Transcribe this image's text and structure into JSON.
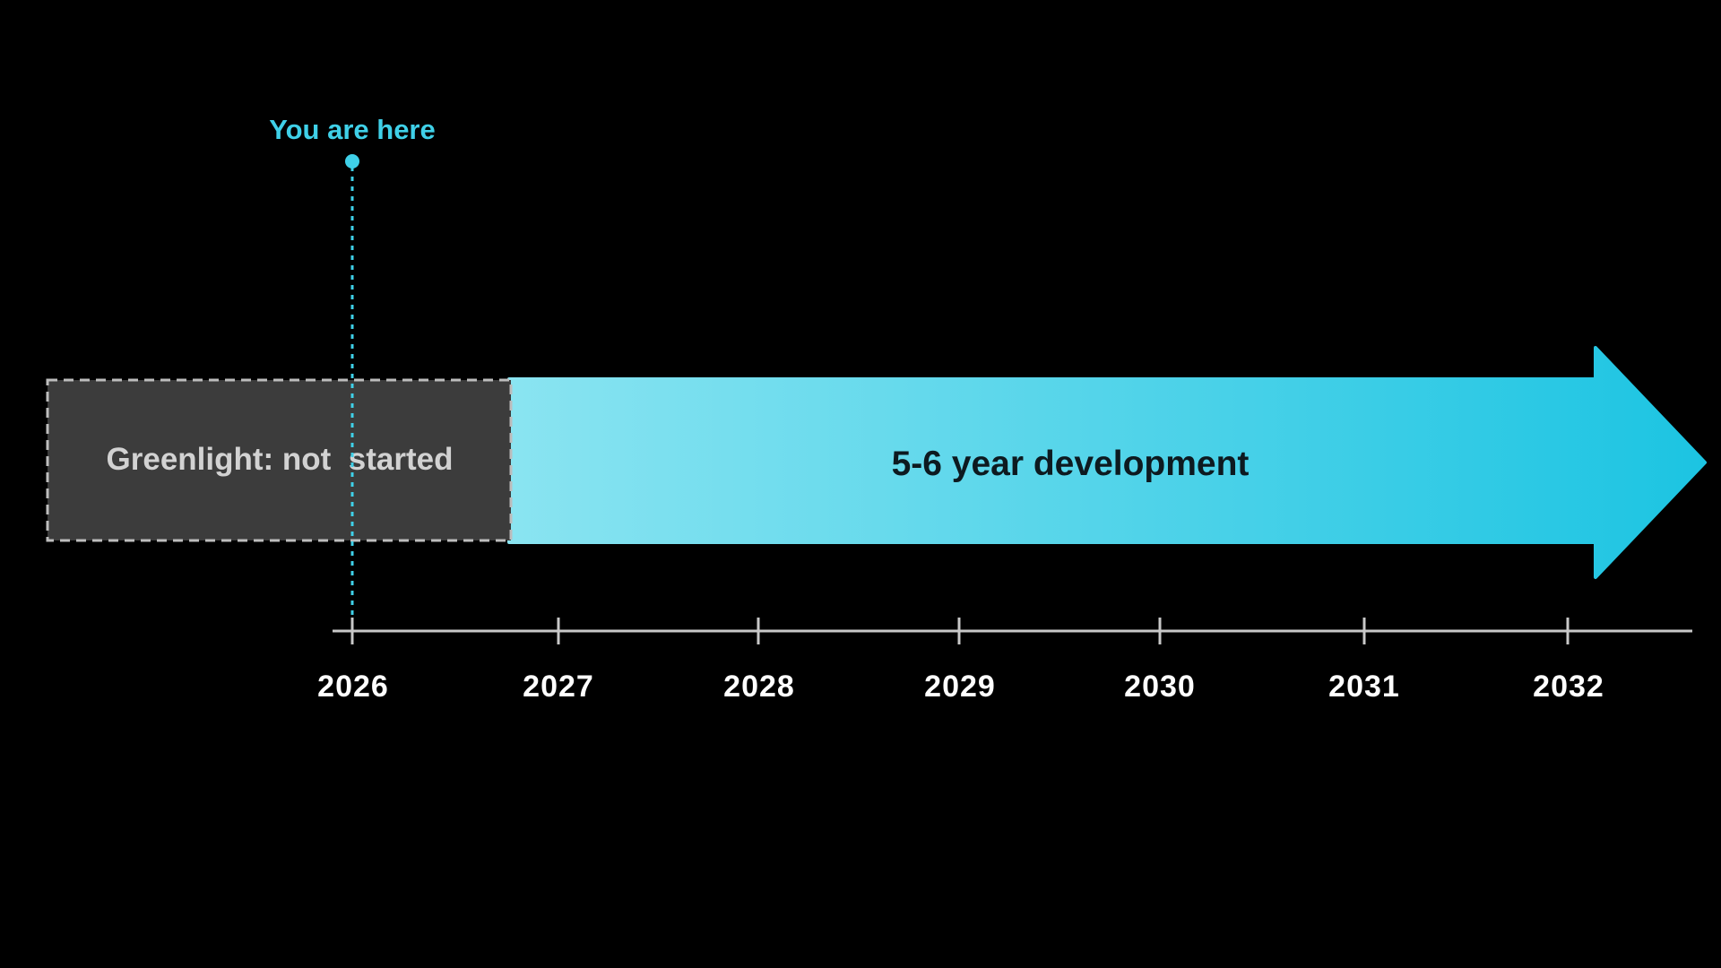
{
  "marker": {
    "label": "You are here",
    "year": 2026
  },
  "phases": {
    "greenlight": {
      "label": "Greenlight: not  started",
      "status": "not started"
    },
    "development": {
      "label": "5-6 year development"
    }
  },
  "timeline": {
    "years": [
      "2026",
      "2027",
      "2028",
      "2029",
      "2030",
      "2031",
      "2032"
    ]
  },
  "colors": {
    "background": "#000000",
    "accent": "#3fd0e8",
    "arrow_start": "#8ae4f1",
    "arrow_end": "#1cc4e2",
    "box_fill": "#3c3c3c",
    "box_border": "#bdbdbd",
    "box_text": "#d2d2d2",
    "axis": "#c8c8c8",
    "tick_text": "#ffffff",
    "arrow_text": "#0d1a20"
  }
}
